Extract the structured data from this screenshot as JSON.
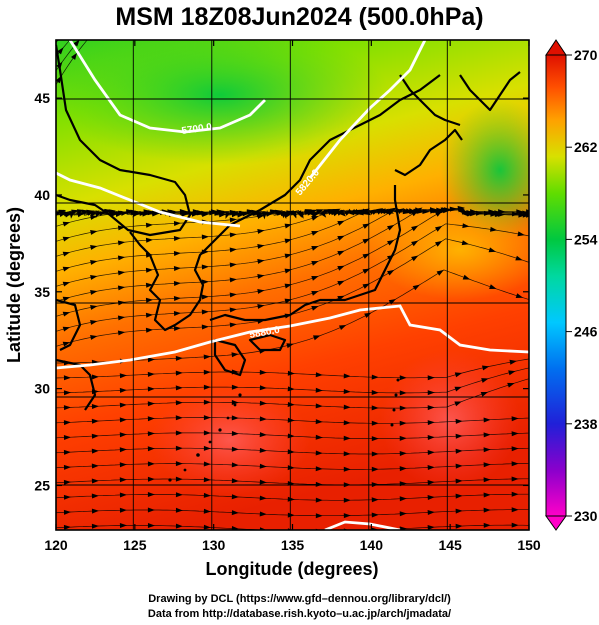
{
  "title": "MSM 18Z08Jun2024 (500.0hPa)",
  "map": {
    "region": "Japan and surrounding seas",
    "lon_range": [
      120,
      150
    ],
    "lat_range": [
      22.7,
      48
    ],
    "x_axis": {
      "label": "Longitude (degrees)",
      "ticks": [
        120,
        125,
        130,
        135,
        140,
        145,
        150
      ],
      "tick_labels": [
        "120",
        "125",
        "130",
        "135",
        "140",
        "145",
        "150"
      ]
    },
    "y_axis": {
      "label": "Latitude  (degrees)",
      "ticks": [
        25,
        30,
        35,
        40,
        45
      ],
      "tick_labels": [
        "25",
        "30",
        "35",
        "40",
        "45"
      ]
    },
    "field": "temperature (shaded) with wind streamlines",
    "contour_labels": [
      "5820.0",
      "5700.0",
      "5880.0"
    ],
    "colorbar": {
      "range": [
        230,
        270
      ],
      "tick_values": [
        230,
        238,
        246,
        254,
        262,
        270
      ],
      "tick_labels": [
        "230",
        "238",
        "246",
        "254",
        "262",
        "270"
      ],
      "colors": [
        "#ff00c8",
        "#8a00cc",
        "#1030d8",
        "#00a8ff",
        "#00d8c0",
        "#00cc40",
        "#60dd00",
        "#dddd00",
        "#ffa000",
        "#ff5000",
        "#e01000"
      ]
    }
  },
  "credits": {
    "line1": "Drawing by DCL (https://www.gfd–dennou.org/library/dcl/)",
    "line2": "Data from http://database.rish.kyoto–u.ac.jp/arch/jmadata/"
  }
}
